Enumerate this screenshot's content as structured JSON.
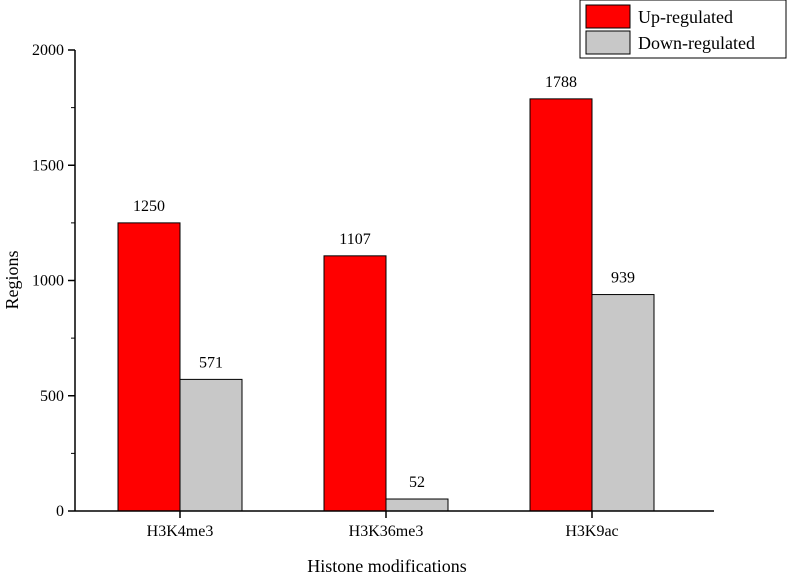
{
  "chart_data": {
    "type": "bar",
    "title": "",
    "xlabel": "Histone modifications",
    "ylabel": "Regions",
    "categories": [
      "H3K4me3",
      "H3K36me3",
      "H3K9ac"
    ],
    "series": [
      {
        "name": "Up-regulated",
        "values": [
          1250,
          1107,
          1788
        ],
        "color": "#ff0000"
      },
      {
        "name": "Down-regulated",
        "values": [
          571,
          52,
          939
        ],
        "color": "#c8c8c8"
      }
    ],
    "ylim": [
      0,
      2000
    ],
    "yticks": [
      0,
      500,
      1000,
      1500,
      2000
    ],
    "grid": false,
    "legend": "top-right",
    "data_labels": true
  }
}
